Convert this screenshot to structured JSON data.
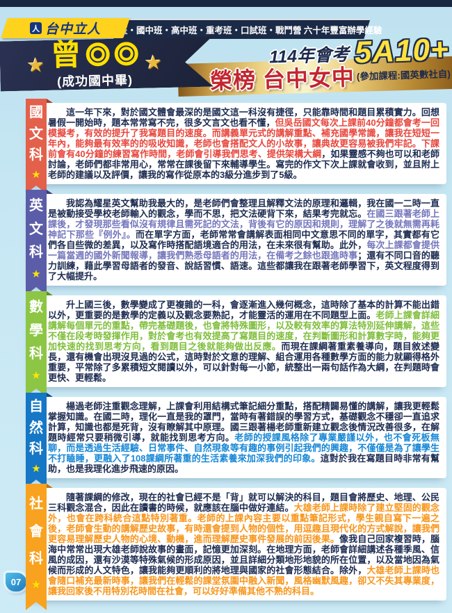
{
  "header": {
    "brand": "台中立人",
    "brand_icon_glyph": "人",
    "programs": "私中班・國中班・高中班・重考班・口試班・戰鬥營 六十年豐富辦學經驗"
  },
  "banner": {
    "student": {
      "surname": "曾",
      "masked": "◯◯",
      "school_note": "(成功國中畢)"
    },
    "exam": "114年會考",
    "score": "5A10+",
    "result": "榮榜 台中女中",
    "courses": "(參加課程:國英數社自)"
  },
  "colors": {
    "page_background": "#C6E6F3",
    "navy": "#1B2A46",
    "logo_yellow": "#FFD21E",
    "score_yellow": "#FFE13C",
    "result_red": "#C3252F",
    "body_text": "#1C2B50",
    "star_yellow": "#FFE600"
  },
  "footer": {
    "page_number": "07"
  },
  "sections": [
    {
      "id": "chinese",
      "subject": "國文科",
      "chars": [
        "國",
        "文",
        "科"
      ],
      "ribbon_color": "#E3604B",
      "fold_color": "#A93C2B",
      "highlight_color": "#E8463C",
      "segments": [
        {
          "h": false,
          "t": "這一年下來，對於國文體會最深的是國文這一科沒有捷徑，只能靠時間和題目累積實力。回想暑假一開始時，題本常常寫不完，很多文言文也看不懂，"
        },
        {
          "h": true,
          "t": "但吳岳國文每次上課前40分鐘都會考一回模擬考，有效的提升了我寫題目的速度。而講義單元式的講解重點、補充國學常識，讓我在短短一年內，能夠最有效率的的吸收知識，老師也會搭配文人的小故事，讓典故更容易被我們牢記。下課前會有40分鐘的練習寫作時間，老師會引導我們思考、提供架構大綱"
        },
        {
          "h": false,
          "t": "，如果靈感不夠也可以和老師討論，老師們都非常用心，常常在課後留下來輔導學生。寫完的作文下次上課就會收到，並且附上老師的建議以及評價，讓我的寫作從原本的3級分進步到了5級。"
        }
      ]
    },
    {
      "id": "english",
      "subject": "英文科",
      "chars": [
        "英",
        "文",
        "科"
      ],
      "ribbon_color": "#5B5DA8",
      "fold_color": "#3C3E7A",
      "highlight_color": "#7476BC",
      "segments": [
        {
          "h": false,
          "t": "我認為耀星英文幫助我最大的，是老師們會整理且解釋文法的原理和邏輯，我在國一二時一直是被動接受學校老師輸入的觀念，學而不思，把文法硬背下來，結果考完就忘。"
        },
        {
          "h": true,
          "t": "在國三跟著老師上課後，才發現那些看似沒有規律且需死記的文法，背後有它的原因和規則，理解了之後就無需再耗神記下那些『例外』。"
        },
        {
          "h": false,
          "t": "而在單字方面，老師常常會講解表面相同中文意思不同的單字，其實都有它們各自些微的差異，以及寫作時搭配語境適合的用法，在未來很有幫助。此外，"
        },
        {
          "h": true,
          "t": "每次上課都會提供一篇當週的國外新聞報導，讓我們熟悉母語者的用法，在備考之餘也跟進時事"
        },
        {
          "h": false,
          "t": "；還有不同口音的聽力訓練，藉此學習母語者的發音、說話習慣、語速。這些都讓我在跟著老師學習下，英文程度得到了大幅提升。"
        }
      ]
    },
    {
      "id": "math",
      "subject": "數學科",
      "chars": [
        "數",
        "學",
        "科"
      ],
      "ribbon_color": "#8CC644",
      "fold_color": "#5E8F22",
      "highlight_color": "#7FBE3B",
      "segments": [
        {
          "h": false,
          "t": "升上國三後，數學變成了更複雜的一科，會逐漸進入幾何概念，這時除了基本的計算不能出錯以外，更重要的是數學的定義以及觀念要熟記，才能靈活的運用在不同題型上面。"
        },
        {
          "h": true,
          "t": "老師上課會詳細講解每個單元的重點，帶完基礎題後，也會將特殊圖形，以及較有效率的算法特別延伸講解，這些不僅在段考時發揮作用，對於會考也有效提高了寫題目的速度，在判斷圖形和計算數字時，能夠更加快速的找到思考方向，看到題目之後就能夠做出反應。"
        },
        {
          "h": false,
          "t": "而現在課綱著重素養導向，題目敘述變長，還有機會出現沒見過的公式，這時對於文意的理解、組合運用各種數學方面的能力就顯得格外重要，平常除了多累積短文閱讀以外，可以針對每一小節，統整出一兩句話作為大綱，在判題時會更快、更輕鬆。"
        }
      ]
    },
    {
      "id": "science",
      "subject": "自然科",
      "chars": [
        "自",
        "然",
        "科"
      ],
      "ribbon_color": "#1577C5",
      "fold_color": "#0A4E8C",
      "highlight_color": "#1787D5",
      "segments": [
        {
          "h": false,
          "t": "楊過老師注重觀念理解，上課會利用結構式筆記細分重點，搭配精闢易懂的講解，讓我更輕鬆掌握知識。在國二時，理化一直是我的罩門，當時有著錯誤的學習方式，基礎觀念不穩卻一直追求計算，知識也都是死背，沒有瞭解其中原理。國三跟著楊老師重新建立觀念後情況改善很多，在解題時經常只要稍微引導，就能找到思考方向。"
        },
        {
          "h": true,
          "t": "老師的授課風格除了專業嚴謹以外，也不會死板無聊，而是透過生活經驗、日常事件、自然現象等有趣的事例引起我們的興趣，不僅僅是為了讓學生不打瞌睡，更融入了108課綱所著重的生活素養來加深我們的印象。"
        },
        {
          "h": false,
          "t": "這對於我在寫題目時非常有幫助，也是我理化進步飛速的原因。"
        }
      ]
    },
    {
      "id": "social",
      "subject": "社會科",
      "chars": [
        "社",
        "會",
        "科"
      ],
      "ribbon_color": "#F8A21F",
      "fold_color": "#C07410",
      "highlight_color": "#F8961C",
      "segments": [
        {
          "h": false,
          "t": "隨著課綱的修改，現在的社會已經不是「背」就可以解決的科目，題目會將歷史、地理、公民三科觀念混合，因此在讀書的時候，就應該在腦中做好連結。"
        },
        {
          "h": true,
          "t": "大雄老師上課時除了建立堅固的觀念外，也會在跨科統合這點特別著重。老師的上課內容主要以重點筆記形式，學生親自寫下一遍之後，老師會生動的講解歷史故事，有時還會提到人物的個性，用逗趣且現代化的方式解說，讓我們更容易理解歷史人物的心境、動機，進而理解歷史事件發展的前因後果。"
        },
        {
          "h": false,
          "t": "像我自己回家複習時，腦海中常常出現大雄老師說故事的畫面，記憶更加深刻。在地理方面，老師會詳細講述各種季風、信風的成因，還有沙漠等特殊氣候的形成原因，並且詳細分類地形地貌的所在位置，以及當地因為氣候而形成的人文特色，讓我能夠更順利的將地理與國家的社會形態結合。除外，"
        },
        {
          "h": true,
          "t": "大雄老師上課時也會隨口補充最新時事，讓我們在輕鬆的課堂氛圍中融入新聞，風格幽默風趣，卻又不失其專業度，讓我回家後不用特別花時間在社會，可以好好準備其他不熟的科目。"
        }
      ]
    }
  ]
}
